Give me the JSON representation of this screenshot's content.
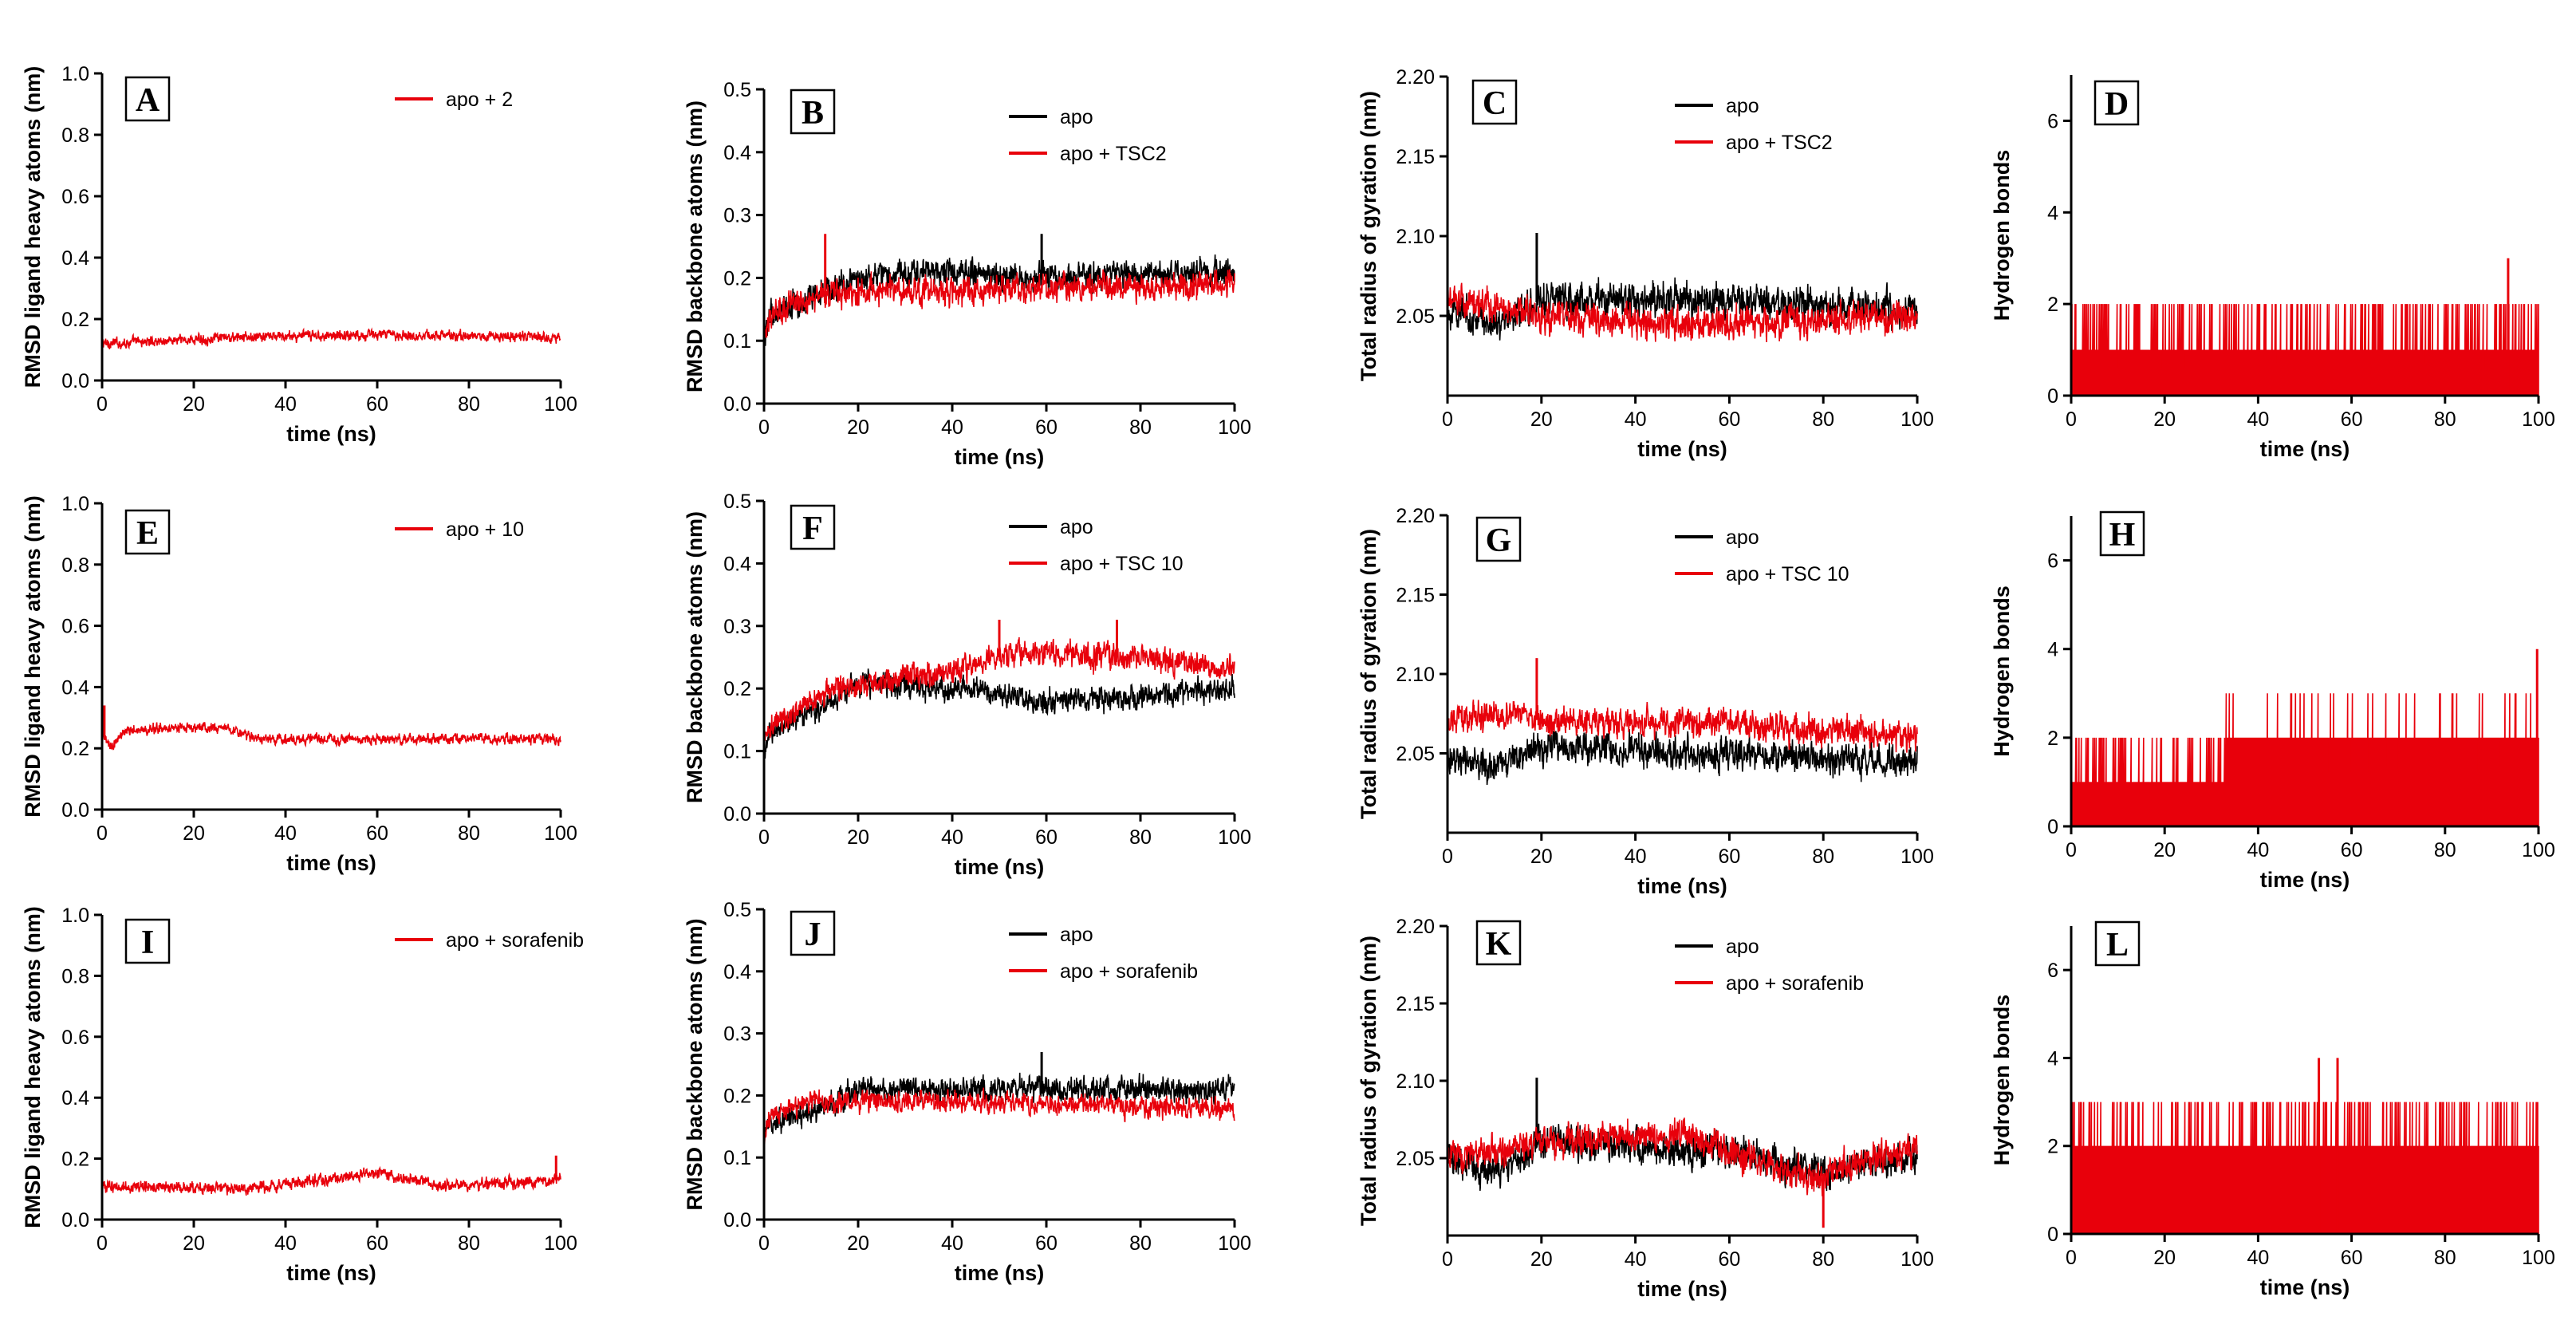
{
  "chart_data": [
    {
      "id": "A",
      "type": "line",
      "panel_label": "A",
      "xlabel": "time (ns)",
      "ylabel": "RMSD ligand heavy atoms (nm)",
      "xlim": [
        0,
        100
      ],
      "xticks": [
        0,
        20,
        40,
        60,
        80,
        100
      ],
      "ylim": [
        0,
        1.0
      ],
      "yticks": [
        0.0,
        0.2,
        0.4,
        0.6,
        0.8,
        1.0
      ],
      "ytick_decimals": 1,
      "series": [
        {
          "name": "apo + 2",
          "color": "#e8000b",
          "mean": [
            [
              0,
              0.12
            ],
            [
              30,
              0.14
            ],
            [
              60,
              0.15
            ],
            [
              100,
              0.14
            ]
          ],
          "noise": 0.022,
          "spikes": []
        }
      ]
    },
    {
      "id": "B",
      "type": "line",
      "panel_label": "B",
      "xlabel": "time (ns)",
      "ylabel": "RMSD backbone atoms (nm)",
      "xlim": [
        0,
        100
      ],
      "xticks": [
        0,
        20,
        40,
        60,
        80,
        100
      ],
      "ylim": [
        0,
        0.5
      ],
      "yticks": [
        0.0,
        0.1,
        0.2,
        0.3,
        0.4,
        0.5
      ],
      "ytick_decimals": 1,
      "series": [
        {
          "name": "apo",
          "color": "#000000",
          "mean": [
            [
              0,
              0.1
            ],
            [
              1,
              0.14
            ],
            [
              10,
              0.17
            ],
            [
              20,
              0.2
            ],
            [
              35,
              0.21
            ],
            [
              60,
              0.2
            ],
            [
              100,
              0.21
            ]
          ],
          "noise": 0.028,
          "spikes": [
            [
              59,
              0.27
            ]
          ]
        },
        {
          "name": "apo + TSC2",
          "color": "#e8000b",
          "mean": [
            [
              0,
              0.1
            ],
            [
              1,
              0.14
            ],
            [
              10,
              0.17
            ],
            [
              20,
              0.18
            ],
            [
              40,
              0.18
            ],
            [
              100,
              0.19
            ]
          ],
          "noise": 0.028,
          "spikes": [
            [
              13,
              0.27
            ]
          ]
        }
      ]
    },
    {
      "id": "C",
      "type": "line",
      "panel_label": "C",
      "xlabel": "time (ns)",
      "ylabel": "Total radius of gyration (nm)",
      "xlim": [
        0,
        100
      ],
      "xticks": [
        0,
        20,
        40,
        60,
        80,
        100
      ],
      "ylim": [
        2.0,
        2.2
      ],
      "yticks": [
        2.05,
        2.1,
        2.15,
        2.2
      ],
      "ytick_decimals": 2,
      "series": [
        {
          "name": "apo",
          "color": "#000000",
          "mean": [
            [
              0,
              2.055
            ],
            [
              10,
              2.045
            ],
            [
              20,
              2.06
            ],
            [
              50,
              2.06
            ],
            [
              100,
              2.055
            ]
          ],
          "noise": 0.014,
          "spikes": [
            [
              19,
              2.102
            ]
          ]
        },
        {
          "name": "apo + TSC2",
          "color": "#e8000b",
          "mean": [
            [
              0,
              2.06
            ],
            [
              20,
              2.05
            ],
            [
              50,
              2.045
            ],
            [
              100,
              2.05
            ]
          ],
          "noise": 0.013,
          "spikes": []
        }
      ]
    },
    {
      "id": "D",
      "type": "line",
      "panel_label": "D",
      "xlabel": "time (ns)",
      "ylabel": "Hydrogen bonds",
      "xlim": [
        0,
        100
      ],
      "xticks": [
        0,
        20,
        40,
        60,
        80,
        100
      ],
      "ylim": [
        0,
        7
      ],
      "yticks": [
        0,
        2,
        4,
        6
      ],
      "ytick_decimals": 0,
      "series": [
        {
          "name": "H-bonds",
          "color": "#e8000b",
          "hbond": true,
          "base": 1,
          "high": 2,
          "p_high": 0.35,
          "p_low": 0.02,
          "spikes": [
            [
              93.5,
              3
            ]
          ]
        }
      ]
    },
    {
      "id": "E",
      "type": "line",
      "panel_label": "E",
      "xlabel": "time (ns)",
      "ylabel": "RMSD ligand heavy atoms (nm)",
      "xlim": [
        0,
        100
      ],
      "xticks": [
        0,
        20,
        40,
        60,
        80,
        100
      ],
      "ylim": [
        0,
        1.0
      ],
      "yticks": [
        0.0,
        0.2,
        0.4,
        0.6,
        0.8,
        1.0
      ],
      "ytick_decimals": 1,
      "series": [
        {
          "name": "apo + 10",
          "color": "#e8000b",
          "mean": [
            [
              0,
              0.25
            ],
            [
              2,
              0.2
            ],
            [
              5,
              0.26
            ],
            [
              25,
              0.27
            ],
            [
              35,
              0.23
            ],
            [
              100,
              0.23
            ]
          ],
          "noise": 0.022,
          "spikes": [
            [
              0.5,
              0.34
            ]
          ]
        }
      ]
    },
    {
      "id": "F",
      "type": "line",
      "panel_label": "F",
      "xlabel": "time (ns)",
      "ylabel": "RMSD backbone atoms (nm)",
      "xlim": [
        0,
        100
      ],
      "xticks": [
        0,
        20,
        40,
        60,
        80,
        100
      ],
      "ylim": [
        0,
        0.5
      ],
      "yticks": [
        0.0,
        0.1,
        0.2,
        0.3,
        0.4,
        0.5
      ],
      "ytick_decimals": 1,
      "series": [
        {
          "name": "apo",
          "color": "#000000",
          "mean": [
            [
              0,
              0.1
            ],
            [
              1,
              0.13
            ],
            [
              15,
              0.18
            ],
            [
              20,
              0.21
            ],
            [
              40,
              0.2
            ],
            [
              60,
              0.18
            ],
            [
              100,
              0.2
            ]
          ],
          "noise": 0.025,
          "spikes": []
        },
        {
          "name": "apo + TSC 10",
          "color": "#e8000b",
          "mean": [
            [
              0,
              0.1
            ],
            [
              1,
              0.14
            ],
            [
              15,
              0.2
            ],
            [
              40,
              0.23
            ],
            [
              55,
              0.26
            ],
            [
              75,
              0.25
            ],
            [
              100,
              0.23
            ]
          ],
          "noise": 0.027,
          "spikes": [
            [
              50,
              0.31
            ],
            [
              75,
              0.31
            ]
          ]
        }
      ]
    },
    {
      "id": "G",
      "type": "line",
      "panel_label": "G",
      "xlabel": "time (ns)",
      "ylabel": "Total radius of gyration (nm)",
      "xlim": [
        0,
        100
      ],
      "xticks": [
        0,
        20,
        40,
        60,
        80,
        100
      ],
      "ylim": [
        2.0,
        2.2
      ],
      "yticks": [
        2.05,
        2.1,
        2.15,
        2.2
      ],
      "ytick_decimals": 2,
      "series": [
        {
          "name": "apo",
          "color": "#000000",
          "mean": [
            [
              0,
              2.05
            ],
            [
              10,
              2.04
            ],
            [
              20,
              2.055
            ],
            [
              50,
              2.05
            ],
            [
              100,
              2.045
            ]
          ],
          "noise": 0.013,
          "spikes": []
        },
        {
          "name": "apo + TSC 10",
          "color": "#e8000b",
          "mean": [
            [
              0,
              2.07
            ],
            [
              15,
              2.075
            ],
            [
              20,
              2.07
            ],
            [
              50,
              2.07
            ],
            [
              100,
              2.06
            ]
          ],
          "noise": 0.012,
          "spikes": [
            [
              19,
              2.11
            ]
          ]
        }
      ]
    },
    {
      "id": "H",
      "type": "line",
      "panel_label": "H",
      "xlabel": "time (ns)",
      "ylabel": "Hydrogen bonds",
      "xlim": [
        0,
        100
      ],
      "xticks": [
        0,
        20,
        40,
        60,
        80,
        100
      ],
      "ylim": [
        0,
        7
      ],
      "yticks": [
        0,
        2,
        4,
        6
      ],
      "ytick_decimals": 0,
      "series": [
        {
          "name": "H-bonds",
          "color": "#e8000b",
          "hbond": true,
          "base": 1,
          "high": 2,
          "switch_x": 33,
          "base2": 2,
          "high2": 3,
          "p_high": 0.25,
          "p_high2": 0.08,
          "p_low": 0.02,
          "spikes": [
            [
              99.7,
              4
            ]
          ]
        }
      ]
    },
    {
      "id": "I",
      "type": "line",
      "panel_label": "I",
      "xlabel": "time (ns)",
      "ylabel": "RMSD ligand heavy atoms (nm)",
      "xlim": [
        0,
        100
      ],
      "xticks": [
        0,
        20,
        40,
        60,
        80,
        100
      ],
      "ylim": [
        0,
        1.0
      ],
      "yticks": [
        0.0,
        0.2,
        0.4,
        0.6,
        0.8,
        1.0
      ],
      "ytick_decimals": 1,
      "series": [
        {
          "name": "apo + sorafenib",
          "color": "#e8000b",
          "mean": [
            [
              0,
              0.11
            ],
            [
              30,
              0.1
            ],
            [
              60,
              0.15
            ],
            [
              75,
              0.11
            ],
            [
              100,
              0.13
            ]
          ],
          "noise": 0.025,
          "spikes": [
            [
              99,
              0.21
            ]
          ]
        }
      ]
    },
    {
      "id": "J",
      "type": "line",
      "panel_label": "J",
      "xlabel": "time (ns)",
      "ylabel": "RMSD backbone atoms (nm)",
      "xlim": [
        0,
        100
      ],
      "xticks": [
        0,
        20,
        40,
        60,
        80,
        100
      ],
      "ylim": [
        0,
        0.5
      ],
      "yticks": [
        0.0,
        0.1,
        0.2,
        0.3,
        0.4,
        0.5
      ],
      "ytick_decimals": 1,
      "series": [
        {
          "name": "apo",
          "color": "#000000",
          "mean": [
            [
              0,
              0.12
            ],
            [
              1,
              0.15
            ],
            [
              10,
              0.17
            ],
            [
              20,
              0.21
            ],
            [
              40,
              0.21
            ],
            [
              100,
              0.21
            ]
          ],
          "noise": 0.026,
          "spikes": [
            [
              59,
              0.27
            ]
          ]
        },
        {
          "name": "apo + sorafenib",
          "color": "#e8000b",
          "mean": [
            [
              0,
              0.13
            ],
            [
              1,
              0.16
            ],
            [
              10,
              0.19
            ],
            [
              40,
              0.19
            ],
            [
              100,
              0.18
            ]
          ],
          "noise": 0.022,
          "spikes": []
        }
      ]
    },
    {
      "id": "K",
      "type": "line",
      "panel_label": "K",
      "xlabel": "time (ns)",
      "ylabel": "Total radius of gyration (nm)",
      "xlim": [
        0,
        100
      ],
      "xticks": [
        0,
        20,
        40,
        60,
        80,
        100
      ],
      "ylim": [
        2.0,
        2.2
      ],
      "yticks": [
        2.05,
        2.1,
        2.15,
        2.2
      ],
      "ytick_decimals": 2,
      "series": [
        {
          "name": "apo",
          "color": "#000000",
          "mean": [
            [
              0,
              2.05
            ],
            [
              10,
              2.04
            ],
            [
              20,
              2.06
            ],
            [
              60,
              2.055
            ],
            [
              80,
              2.04
            ],
            [
              100,
              2.05
            ]
          ],
          "noise": 0.014,
          "spikes": [
            [
              19,
              2.102
            ]
          ]
        },
        {
          "name": "apo + sorafenib",
          "color": "#e8000b",
          "mean": [
            [
              0,
              2.05
            ],
            [
              20,
              2.06
            ],
            [
              50,
              2.065
            ],
            [
              78,
              2.035
            ],
            [
              82,
              2.045
            ],
            [
              100,
              2.055
            ]
          ],
          "noise": 0.013,
          "spikes": [
            [
              80,
              2.005
            ]
          ]
        }
      ]
    },
    {
      "id": "L",
      "type": "line",
      "panel_label": "L",
      "xlabel": "time (ns)",
      "ylabel": "Hydrogen bonds",
      "xlim": [
        0,
        100
      ],
      "xticks": [
        0,
        20,
        40,
        60,
        80,
        100
      ],
      "ylim": [
        0,
        7
      ],
      "yticks": [
        0,
        2,
        4,
        6
      ],
      "ytick_decimals": 0,
      "series": [
        {
          "name": "H-bonds",
          "color": "#e8000b",
          "hbond": true,
          "base": 2,
          "high": 3,
          "p_high": 0.25,
          "p_low": 0.0,
          "spikes": [
            [
              53,
              4
            ],
            [
              57,
              4
            ]
          ]
        }
      ]
    }
  ]
}
